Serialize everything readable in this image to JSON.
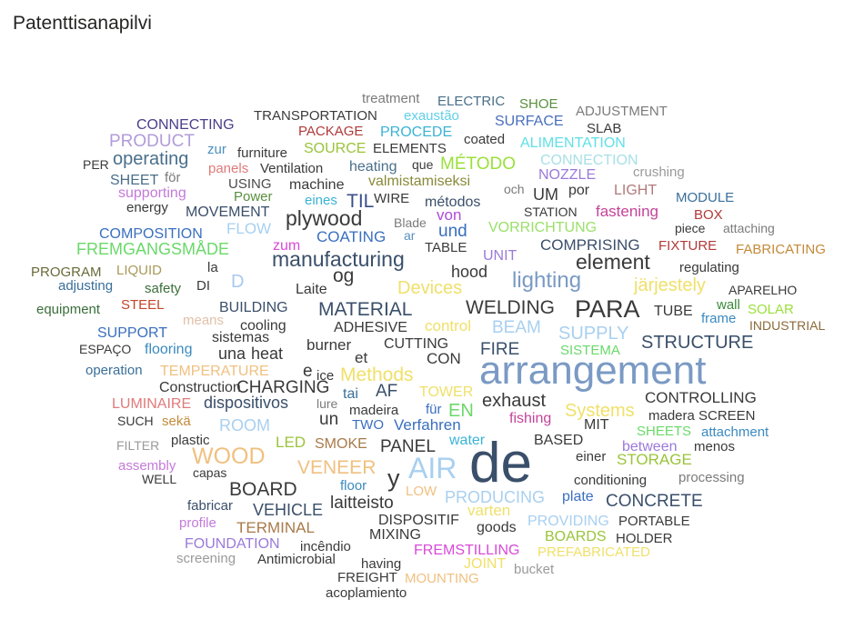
{
  "visual_title": "Patenttisanapilvi",
  "chart_data": {
    "type": "wordcloud",
    "title": "Patenttisanapilvi",
    "words": [
      {
        "text": "treatment",
        "color": "#7b7b7b"
      },
      {
        "text": "ELECTRIC",
        "color": "#4a6f8a"
      },
      {
        "text": "SHOE",
        "color": "#5a8f3e"
      },
      {
        "text": "ADJUSTMENT",
        "color": "#7b7b7b"
      },
      {
        "text": "TRANSPORTATION",
        "color": "#3a3a3a"
      },
      {
        "text": "exaustão",
        "color": "#5fd0e6"
      },
      {
        "text": "SURFACE",
        "color": "#4a6fbf"
      },
      {
        "text": "CONNECTING",
        "color": "#4a3f8a"
      },
      {
        "text": "PACKAGE",
        "color": "#b03a3a"
      },
      {
        "text": "PROCEDE",
        "color": "#3bb3d6"
      },
      {
        "text": "SLAB",
        "color": "#3a3a3a"
      },
      {
        "text": "PRODUCT",
        "color": "#b19cd9"
      },
      {
        "text": "zur",
        "color": "#4a8fbf"
      },
      {
        "text": "coated",
        "color": "#3a3a3a"
      },
      {
        "text": "ALIMENTATION",
        "color": "#5fe0e6"
      },
      {
        "text": "operating",
        "color": "#4a6f8a"
      },
      {
        "text": "furniture",
        "color": "#3a3a3a"
      },
      {
        "text": "SOURCE",
        "color": "#9ac43a"
      },
      {
        "text": "ELEMENTS",
        "color": "#3a3a3a"
      },
      {
        "text": "CONNECTION",
        "color": "#a8e0e6"
      },
      {
        "text": "PER",
        "color": "#3a3a3a"
      },
      {
        "text": "panels",
        "color": "#e07a7a"
      },
      {
        "text": "Ventilation",
        "color": "#3a3a3a"
      },
      {
        "text": "heating",
        "color": "#4a6f8a"
      },
      {
        "text": "que",
        "color": "#3a3a3a"
      },
      {
        "text": "MÉTODO",
        "color": "#9ae03a"
      },
      {
        "text": "NOZZLE",
        "color": "#9a7ad9"
      },
      {
        "text": "crushing",
        "color": "#9a9a9a"
      },
      {
        "text": "SHEET",
        "color": "#4a6f8a"
      },
      {
        "text": "för",
        "color": "#7b7b7b"
      },
      {
        "text": "USING",
        "color": "#4a4a4a"
      },
      {
        "text": "machine",
        "color": "#3a3a3a"
      },
      {
        "text": "valmistamiseksi",
        "color": "#8a8a3a"
      },
      {
        "text": "och",
        "color": "#7b7b7b"
      },
      {
        "text": "UM",
        "color": "#3a3a3a"
      },
      {
        "text": "por",
        "color": "#3a3a3a"
      },
      {
        "text": "LIGHT",
        "color": "#b07a7a"
      },
      {
        "text": "supporting",
        "color": "#c47ad9"
      },
      {
        "text": "Power",
        "color": "#5a8f3e"
      },
      {
        "text": "eines",
        "color": "#3bb3d6"
      },
      {
        "text": "TIL",
        "color": "#3a4f8a"
      },
      {
        "text": "WIRE",
        "color": "#3a3a3a"
      },
      {
        "text": "métodos",
        "color": "#3a4f6a"
      },
      {
        "text": "MODULE",
        "color": "#3a6f9a"
      },
      {
        "text": "energy",
        "color": "#3a3a3a"
      },
      {
        "text": "MOVEMENT",
        "color": "#3a4f6a"
      },
      {
        "text": "STATION",
        "color": "#3a3a3a"
      },
      {
        "text": "fastening",
        "color": "#c4449a"
      },
      {
        "text": "BOX",
        "color": "#b03a3a"
      },
      {
        "text": "plywood",
        "color": "#3a3a3a"
      },
      {
        "text": "Blade",
        "color": "#7b7b7b"
      },
      {
        "text": "von",
        "color": "#b04ad9"
      },
      {
        "text": "VORRICHTUNG",
        "color": "#9ae06a"
      },
      {
        "text": "piece",
        "color": "#3a3a3a"
      },
      {
        "text": "attaching",
        "color": "#7b7b7b"
      },
      {
        "text": "COMPOSITION",
        "color": "#3a6fbf"
      },
      {
        "text": "FLOW",
        "color": "#a8d0f0"
      },
      {
        "text": "COATING",
        "color": "#3a6fbf"
      },
      {
        "text": "ar",
        "color": "#5a8fbf"
      },
      {
        "text": "und",
        "color": "#3a6fbf"
      },
      {
        "text": "FREMGANGSMÅDE",
        "color": "#6ad96a"
      },
      {
        "text": "zum",
        "color": "#d94ad9"
      },
      {
        "text": "TABLE",
        "color": "#3a3a3a"
      },
      {
        "text": "UNIT",
        "color": "#9a7ad9"
      },
      {
        "text": "COMPRISING",
        "color": "#3a4f6a"
      },
      {
        "text": "FIXTURE",
        "color": "#b03a3a"
      },
      {
        "text": "FABRICATING",
        "color": "#c48a3a"
      },
      {
        "text": "manufacturing",
        "color": "#3a4f6a"
      },
      {
        "text": "element",
        "color": "#3a3a3a"
      },
      {
        "text": "PROGRAM",
        "color": "#6a6a3a"
      },
      {
        "text": "LIQUID",
        "color": "#a89a5a"
      },
      {
        "text": "la",
        "color": "#3a3a3a"
      },
      {
        "text": "D",
        "color": "#a8c8f0"
      },
      {
        "text": "og",
        "color": "#3a3a3a"
      },
      {
        "text": "hood",
        "color": "#3a3a3a"
      },
      {
        "text": "lighting",
        "color": "#7a9ac4"
      },
      {
        "text": "regulating",
        "color": "#3a3a3a"
      },
      {
        "text": "adjusting",
        "color": "#3a6f9a"
      },
      {
        "text": "safety",
        "color": "#3a6f3a"
      },
      {
        "text": "DI",
        "color": "#3a3a3a"
      },
      {
        "text": "Laite",
        "color": "#3a3a3a"
      },
      {
        "text": "Devices",
        "color": "#f0e06a"
      },
      {
        "text": "järjestely",
        "color": "#f0e06a"
      },
      {
        "text": "APARELHO",
        "color": "#3a3a3a"
      },
      {
        "text": "equipment",
        "color": "#3a6f3a"
      },
      {
        "text": "STEEL",
        "color": "#c4442a"
      },
      {
        "text": "BUILDING",
        "color": "#3a4f6a"
      },
      {
        "text": "MATERIAL",
        "color": "#3a4f6a"
      },
      {
        "text": "WELDING",
        "color": "#3a3a3a"
      },
      {
        "text": "PARA",
        "color": "#3a3a3a"
      },
      {
        "text": "TUBE",
        "color": "#3a3a3a"
      },
      {
        "text": "wall",
        "color": "#3a8a3a"
      },
      {
        "text": "SOLAR",
        "color": "#9ae03a"
      },
      {
        "text": "means",
        "color": "#e0c0a8"
      },
      {
        "text": "frame",
        "color": "#3a8abf"
      },
      {
        "text": "INDUSTRIAL",
        "color": "#8a6a3a"
      },
      {
        "text": "SUPPORT",
        "color": "#3a6fbf"
      },
      {
        "text": "cooling",
        "color": "#3a3a3a"
      },
      {
        "text": "ADHESIVE",
        "color": "#3a3a3a"
      },
      {
        "text": "control",
        "color": "#f0e06a"
      },
      {
        "text": "BEAM",
        "color": "#a8d0f0"
      },
      {
        "text": "SUPPLY",
        "color": "#a8d0f0"
      },
      {
        "text": "STRUCTURE",
        "color": "#3a4f6a"
      },
      {
        "text": "ESPAÇO",
        "color": "#3a3a3a"
      },
      {
        "text": "flooring",
        "color": "#3a8abf"
      },
      {
        "text": "sistemas",
        "color": "#3a3a3a"
      },
      {
        "text": "una",
        "color": "#3a3a3a"
      },
      {
        "text": "heat",
        "color": "#3a3a3a"
      },
      {
        "text": "burner",
        "color": "#3a3a3a"
      },
      {
        "text": "CUTTING",
        "color": "#3a3a3a"
      },
      {
        "text": "FIRE",
        "color": "#3a4f6a"
      },
      {
        "text": "SISTEMA",
        "color": "#6ad96a"
      },
      {
        "text": "operation",
        "color": "#3a6f9a"
      },
      {
        "text": "TEMPERATURE",
        "color": "#f0c080"
      },
      {
        "text": "et",
        "color": "#3a3a3a"
      },
      {
        "text": "CON",
        "color": "#3a3a3a"
      },
      {
        "text": "arrangement",
        "color": "#7a9ac4"
      },
      {
        "text": "Construction",
        "color": "#3a3a3a"
      },
      {
        "text": "CHARGING",
        "color": "#3a3a3a"
      },
      {
        "text": "e",
        "color": "#3a3a3a"
      },
      {
        "text": "ice",
        "color": "#3a3a3a"
      },
      {
        "text": "Methods",
        "color": "#f0e06a"
      },
      {
        "text": "LUMINAIRE",
        "color": "#e07a7a"
      },
      {
        "text": "dispositivos",
        "color": "#3a4f6a"
      },
      {
        "text": "tai",
        "color": "#3a6f9a"
      },
      {
        "text": "AF",
        "color": "#3a4f6a"
      },
      {
        "text": "TOWER",
        "color": "#f0e06a"
      },
      {
        "text": "exhaust",
        "color": "#3a3a3a"
      },
      {
        "text": "CONTROLLING",
        "color": "#3a3a3a"
      },
      {
        "text": "lure",
        "color": "#7b7b7b"
      },
      {
        "text": "madeira",
        "color": "#3a3a3a"
      },
      {
        "text": "für",
        "color": "#3a6fbf"
      },
      {
        "text": "EN",
        "color": "#6ad96a"
      },
      {
        "text": "Systems",
        "color": "#f0e06a"
      },
      {
        "text": "madera",
        "color": "#3a3a3a"
      },
      {
        "text": "SCREEN",
        "color": "#3a3a3a"
      },
      {
        "text": "SUCH",
        "color": "#3a3a3a"
      },
      {
        "text": "sekä",
        "color": "#c48a3a"
      },
      {
        "text": "ROOM",
        "color": "#a8d0f0"
      },
      {
        "text": "un",
        "color": "#3a3a3a"
      },
      {
        "text": "TWO",
        "color": "#3a6fbf"
      },
      {
        "text": "Verfahren",
        "color": "#3a6fbf"
      },
      {
        "text": "fishing",
        "color": "#c4449a"
      },
      {
        "text": "MIT",
        "color": "#3a3a3a"
      },
      {
        "text": "SHEETS",
        "color": "#6ad96a"
      },
      {
        "text": "attachment",
        "color": "#3a8abf"
      },
      {
        "text": "FILTER",
        "color": "#9a9a9a"
      },
      {
        "text": "plastic",
        "color": "#3a3a3a"
      },
      {
        "text": "LED",
        "color": "#9ac43a"
      },
      {
        "text": "SMOKE",
        "color": "#a87a4a"
      },
      {
        "text": "PANEL",
        "color": "#3a3a3a"
      },
      {
        "text": "water",
        "color": "#3bb3d6"
      },
      {
        "text": "BASED",
        "color": "#3a3a3a"
      },
      {
        "text": "between",
        "color": "#9a7ad9"
      },
      {
        "text": "menos",
        "color": "#3a3a3a"
      },
      {
        "text": "assembly",
        "color": "#c47ad9"
      },
      {
        "text": "WOOD",
        "color": "#f0c080"
      },
      {
        "text": "einer",
        "color": "#3a3a3a"
      },
      {
        "text": "STORAGE",
        "color": "#9ac43a"
      },
      {
        "text": "WELL",
        "color": "#3a3a3a"
      },
      {
        "text": "capas",
        "color": "#3a3a3a"
      },
      {
        "text": "VENEER",
        "color": "#f0c080"
      },
      {
        "text": "AIR",
        "color": "#a8d0f0"
      },
      {
        "text": "de",
        "color": "#3a4f6a"
      },
      {
        "text": "y",
        "color": "#3a3a3a"
      },
      {
        "text": "processing",
        "color": "#7b7b7b"
      },
      {
        "text": "conditioning",
        "color": "#3a3a3a"
      },
      {
        "text": "BOARD",
        "color": "#3a3a3a"
      },
      {
        "text": "floor",
        "color": "#3a8abf"
      },
      {
        "text": "LOW",
        "color": "#f0c080"
      },
      {
        "text": "fabricar",
        "color": "#3a4f6a"
      },
      {
        "text": "VEHICLE",
        "color": "#3a4f6a"
      },
      {
        "text": "laitteisto",
        "color": "#3a3a3a"
      },
      {
        "text": "PRODUCING",
        "color": "#a8d0f0"
      },
      {
        "text": "plate",
        "color": "#3a6fbf"
      },
      {
        "text": "CONCRETE",
        "color": "#3a4f6a"
      },
      {
        "text": "profile",
        "color": "#c47ad9"
      },
      {
        "text": "TERMINAL",
        "color": "#a87a4a"
      },
      {
        "text": "DISPOSITIF",
        "color": "#3a3a3a"
      },
      {
        "text": "varten",
        "color": "#f0e06a"
      },
      {
        "text": "goods",
        "color": "#3a3a3a"
      },
      {
        "text": "PROVIDING",
        "color": "#a8d0f0"
      },
      {
        "text": "PORTABLE",
        "color": "#3a3a3a"
      },
      {
        "text": "FOUNDATION",
        "color": "#9a7ad9"
      },
      {
        "text": "MIXING",
        "color": "#3a3a3a"
      },
      {
        "text": "BOARDS",
        "color": "#9ac43a"
      },
      {
        "text": "HOLDER",
        "color": "#3a3a3a"
      },
      {
        "text": "incêndio",
        "color": "#3a3a3a"
      },
      {
        "text": "screening",
        "color": "#9a9a9a"
      },
      {
        "text": "Antimicrobial",
        "color": "#3a3a3a"
      },
      {
        "text": "having",
        "color": "#3a3a3a"
      },
      {
        "text": "FREMSTILLING",
        "color": "#d94ad9"
      },
      {
        "text": "PREFABRICATED",
        "color": "#f0e06a"
      },
      {
        "text": "JOINT",
        "color": "#f0e06a"
      },
      {
        "text": "bucket",
        "color": "#9a9a9a"
      },
      {
        "text": "FREIGHT",
        "color": "#3a3a3a"
      },
      {
        "text": "MOUNTING",
        "color": "#f0c080"
      },
      {
        "text": "acoplamiento",
        "color": "#3a3a3a"
      }
    ]
  }
}
